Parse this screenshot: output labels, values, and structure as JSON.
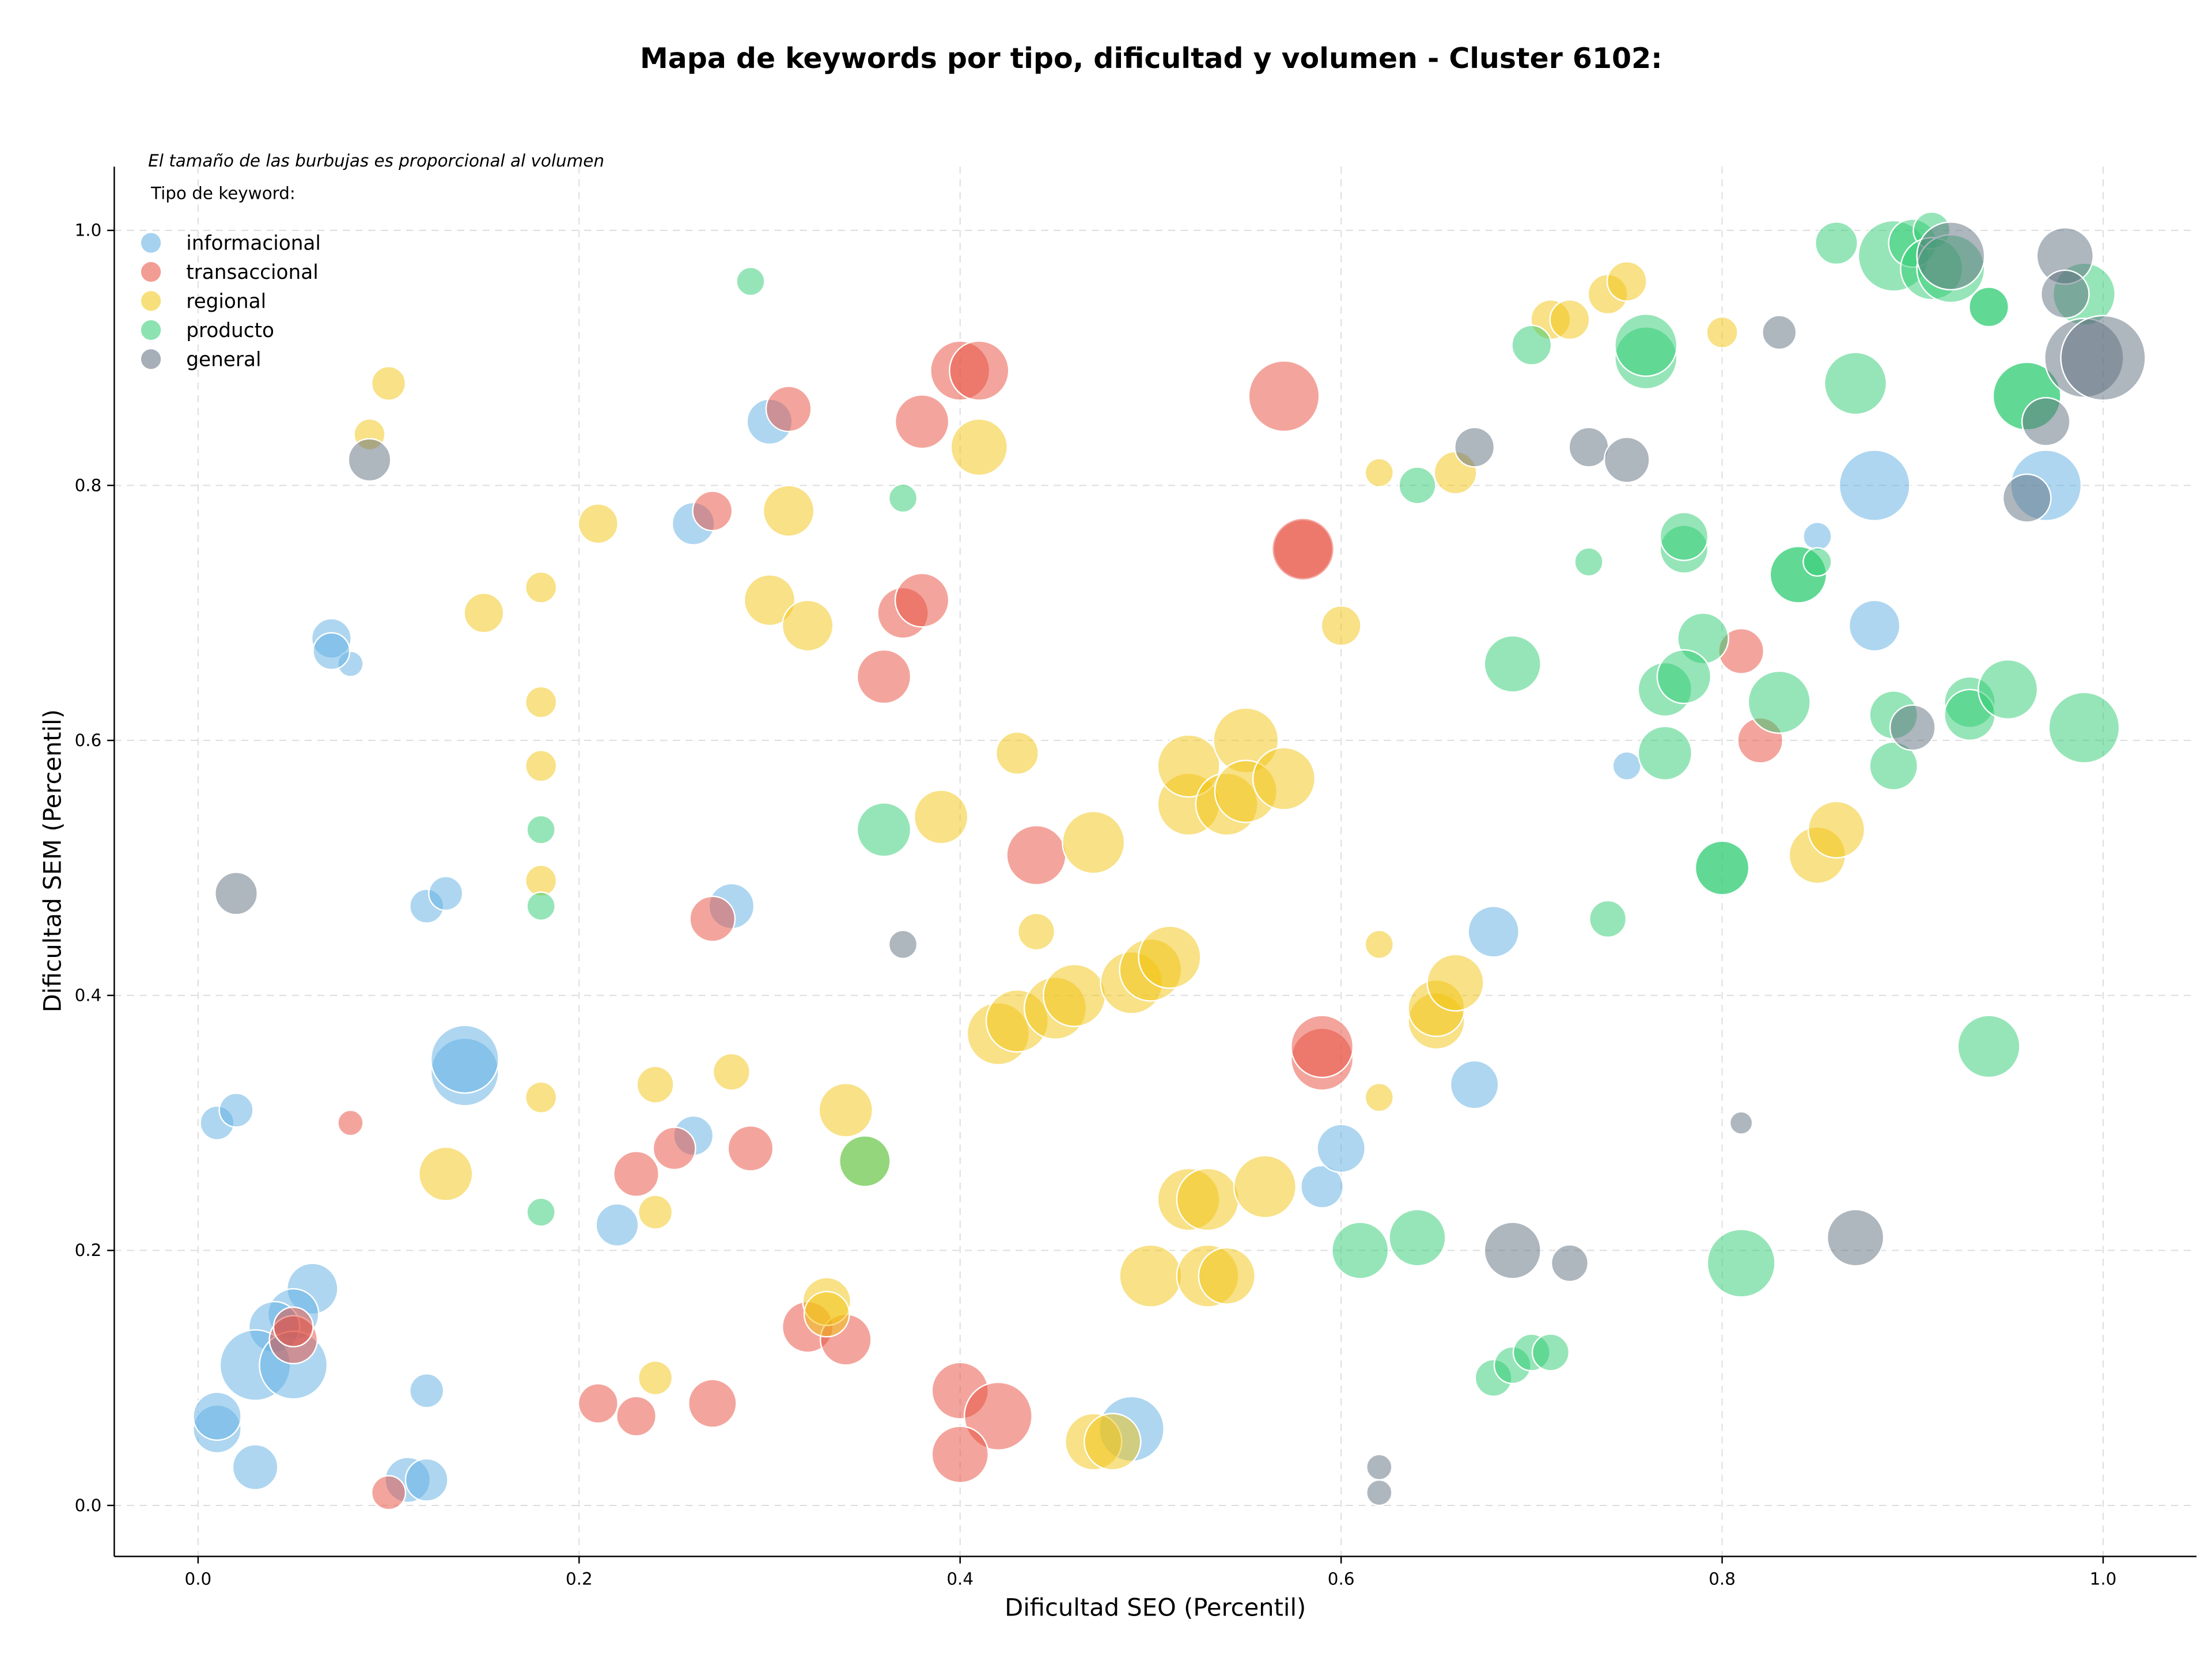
{
  "chart_data": {
    "type": "bubble",
    "title": "Mapa de keywords por tipo, dificultad y volumen - Cluster 6102:",
    "x_label": "Dificultad SEO (Percentil)",
    "y_label": "Dificultad SEM (Percentil)",
    "note": "El tamaño de las burbujas es proporcional al volumen",
    "legend_title": "Tipo de keyword:",
    "legend_position": "upper left",
    "grid": true,
    "xlim": [
      -0.044,
      1.049
    ],
    "ylim": [
      -0.04,
      1.05
    ],
    "xticks": [
      {
        "value": 0,
        "label": "0.0"
      },
      0.2,
      0.4,
      0.6,
      0.8,
      {
        "value": 1,
        "label": "1.0"
      }
    ],
    "yticks": [
      {
        "value": 0,
        "label": "0.0"
      },
      0.2,
      0.4,
      0.6,
      0.8,
      {
        "value": 1,
        "label": "1.0"
      }
    ],
    "series": [
      {
        "name": "informacional",
        "color": "#5dade2",
        "x": [
          0.88,
          0.97,
          0.3,
          0.26,
          0.07,
          0.08,
          0.07,
          0.12,
          0.13,
          0.28,
          0.14,
          0.14,
          0.01,
          0.02,
          0.26,
          0.22,
          0.06,
          0.05,
          0.04,
          0.03,
          0.05,
          0.01,
          0.01,
          0.03,
          0.12,
          0.11,
          0.12,
          0.49,
          0.59,
          0.6,
          0.67,
          0.68,
          0.75,
          0.85,
          0.88
        ],
        "y": [
          0.8,
          0.8,
          0.85,
          0.77,
          0.68,
          0.66,
          0.67,
          0.47,
          0.48,
          0.47,
          0.34,
          0.35,
          0.3,
          0.31,
          0.29,
          0.22,
          0.17,
          0.15,
          0.14,
          0.11,
          0.11,
          0.06,
          0.07,
          0.03,
          0.09,
          0.02,
          0.02,
          0.06,
          0.25,
          0.28,
          0.33,
          0.45,
          0.58,
          0.76,
          0.69
        ],
        "sizes": [
          25,
          25,
          16,
          15,
          14,
          9,
          13,
          12,
          12,
          16,
          24,
          24,
          12,
          12,
          14,
          15,
          18,
          18,
          18,
          25,
          24,
          17,
          17,
          16,
          12,
          16,
          15,
          23,
          15,
          17,
          17,
          18,
          10,
          10,
          18
        ]
      },
      {
        "name": "transaccional",
        "color": "#e74c3c",
        "x": [
          0.31,
          0.27,
          0.4,
          0.41,
          0.38,
          0.57,
          0.58,
          0.58,
          0.37,
          0.38,
          0.36,
          0.44,
          0.27,
          0.59,
          0.59,
          0.08,
          0.25,
          0.29,
          0.23,
          0.05,
          0.05,
          0.32,
          0.34,
          0.21,
          0.23,
          0.27,
          0.4,
          0.42,
          0.4,
          0.1,
          0.81,
          0.82
        ],
        "y": [
          0.86,
          0.78,
          0.89,
          0.89,
          0.85,
          0.87,
          0.75,
          0.75,
          0.7,
          0.71,
          0.65,
          0.51,
          0.46,
          0.35,
          0.36,
          0.3,
          0.28,
          0.28,
          0.26,
          0.13,
          0.14,
          0.14,
          0.13,
          0.08,
          0.07,
          0.08,
          0.09,
          0.07,
          0.04,
          0.01,
          0.67,
          0.6
        ],
        "sizes": [
          16,
          14,
          21,
          21,
          19,
          25,
          21,
          22,
          18,
          19,
          19,
          21,
          16,
          22,
          22,
          9,
          15,
          16,
          16,
          17,
          14,
          18,
          18,
          14,
          14,
          17,
          20,
          24,
          20,
          12,
          16,
          16
        ]
      },
      {
        "name": "regional",
        "color": "#f1c40f",
        "x": [
          0.1,
          0.09,
          0.21,
          0.15,
          0.18,
          0.18,
          0.18,
          0.18,
          0.18,
          0.31,
          0.3,
          0.32,
          0.41,
          0.43,
          0.39,
          0.44,
          0.13,
          0.24,
          0.28,
          0.34,
          0.35,
          0.24,
          0.24,
          0.33,
          0.33,
          0.42,
          0.43,
          0.45,
          0.46,
          0.47,
          0.49,
          0.5,
          0.51,
          0.52,
          0.52,
          0.54,
          0.55,
          0.55,
          0.57,
          0.52,
          0.53,
          0.56,
          0.5,
          0.53,
          0.54,
          0.47,
          0.48,
          0.6,
          0.62,
          0.62,
          0.62,
          0.66,
          0.65,
          0.65,
          0.66,
          0.71,
          0.72,
          0.74,
          0.75,
          0.8,
          0.85,
          0.86
        ],
        "y": [
          0.88,
          0.84,
          0.77,
          0.7,
          0.72,
          0.63,
          0.58,
          0.49,
          0.32,
          0.78,
          0.71,
          0.69,
          0.83,
          0.59,
          0.54,
          0.45,
          0.26,
          0.33,
          0.34,
          0.31,
          0.27,
          0.23,
          0.1,
          0.16,
          0.15,
          0.37,
          0.38,
          0.39,
          0.4,
          0.52,
          0.41,
          0.42,
          0.43,
          0.55,
          0.58,
          0.55,
          0.6,
          0.56,
          0.57,
          0.24,
          0.24,
          0.25,
          0.18,
          0.18,
          0.18,
          0.05,
          0.05,
          0.69,
          0.81,
          0.44,
          0.32,
          0.81,
          0.38,
          0.39,
          0.41,
          0.93,
          0.93,
          0.95,
          0.96,
          0.92,
          0.51,
          0.53
        ],
        "sizes": [
          12,
          11,
          14,
          14,
          11,
          11,
          11,
          11,
          11,
          18,
          18,
          18,
          20,
          15,
          19,
          13,
          19,
          13,
          13,
          19,
          19,
          12,
          12,
          17,
          16,
          22,
          22,
          22,
          22,
          22,
          22,
          22,
          22,
          22,
          22,
          22,
          23,
          22,
          22,
          22,
          22,
          22,
          22,
          22,
          20,
          20,
          20,
          14,
          10,
          10,
          10,
          15,
          20,
          20,
          20,
          14,
          14,
          14,
          14,
          11,
          20,
          20
        ]
      },
      {
        "name": "producto",
        "color": "#2ecc71",
        "x": [
          0.29,
          0.37,
          0.18,
          0.18,
          0.18,
          0.36,
          0.35,
          0.64,
          0.7,
          0.76,
          0.76,
          0.73,
          0.78,
          0.78,
          0.69,
          0.79,
          0.77,
          0.78,
          0.77,
          0.74,
          0.8,
          0.8,
          0.83,
          0.86,
          0.87,
          0.84,
          0.84,
          0.85,
          0.89,
          0.89,
          0.93,
          0.93,
          0.95,
          0.99,
          0.94,
          0.81,
          0.61,
          0.64,
          0.68,
          0.69,
          0.7,
          0.71,
          0.89,
          0.9,
          0.91,
          0.91,
          0.92,
          0.94,
          0.94,
          0.96,
          0.96,
          0.99
        ],
        "y": [
          0.96,
          0.79,
          0.53,
          0.47,
          0.23,
          0.53,
          0.27,
          0.8,
          0.91,
          0.9,
          0.91,
          0.74,
          0.75,
          0.76,
          0.66,
          0.68,
          0.64,
          0.65,
          0.59,
          0.46,
          0.5,
          0.5,
          0.63,
          0.99,
          0.88,
          0.73,
          0.73,
          0.74,
          0.58,
          0.62,
          0.63,
          0.62,
          0.64,
          0.61,
          0.36,
          0.19,
          0.2,
          0.21,
          0.1,
          0.11,
          0.12,
          0.12,
          0.98,
          0.99,
          1.0,
          0.97,
          0.97,
          0.94,
          0.94,
          0.87,
          0.87,
          0.95
        ],
        "sizes": [
          10,
          10,
          10,
          10,
          10,
          19,
          18,
          13,
          14,
          22,
          22,
          10,
          17,
          17,
          20,
          18,
          19,
          19,
          19,
          13,
          20,
          19,
          22,
          15,
          22,
          21,
          20,
          10,
          17,
          17,
          18,
          18,
          21,
          25,
          22,
          24,
          20,
          20,
          13,
          13,
          13,
          13,
          25,
          17,
          13,
          22,
          24,
          14,
          14,
          25,
          24,
          22
        ]
      },
      {
        "name": "general",
        "color": "#5d6d7e",
        "x": [
          0.09,
          0.02,
          0.37,
          0.67,
          0.73,
          0.75,
          0.83,
          0.81,
          0.69,
          0.72,
          0.87,
          0.62,
          0.62,
          0.9,
          0.92,
          0.98,
          0.98,
          0.97,
          0.96,
          0.99,
          1.0
        ],
        "y": [
          0.82,
          0.48,
          0.44,
          0.83,
          0.83,
          0.82,
          0.92,
          0.3,
          0.2,
          0.19,
          0.21,
          0.03,
          0.01,
          0.61,
          0.98,
          0.98,
          0.95,
          0.85,
          0.79,
          0.9,
          0.9
        ],
        "sizes": [
          15,
          15,
          10,
          14,
          14,
          16,
          12,
          8,
          20,
          13,
          20,
          9,
          9,
          16,
          24,
          20,
          17,
          17,
          17,
          28,
          30
        ]
      }
    ]
  }
}
